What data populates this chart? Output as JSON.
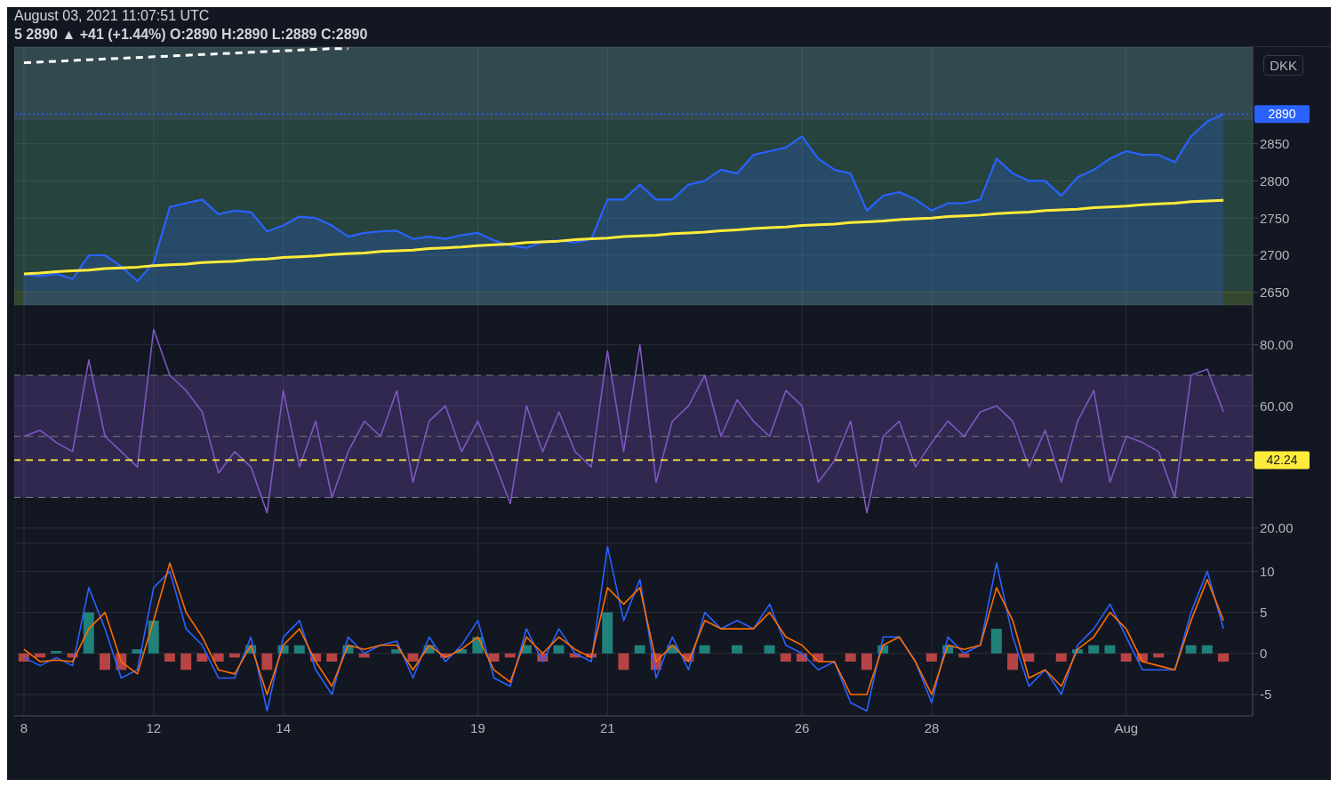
{
  "chart_data": [
    {
      "type": "area",
      "title": "August 03, 2021 11:07:51 UTC",
      "subtitle": "5  2890 ▲ +41 (+1.44%) O:2890 H:2890 L:2889 C:2890",
      "ylabel": "DKK",
      "categories": [
        null,
        null,
        null,
        null,
        null,
        null,
        null,
        null,
        null,
        null,
        null,
        null,
        null,
        null,
        null,
        null,
        null,
        null,
        null,
        null,
        null,
        null,
        null,
        null,
        null,
        null,
        null,
        null,
        null,
        null,
        null,
        null,
        null,
        null,
        null,
        null,
        null,
        null,
        null,
        null,
        null,
        null,
        null,
        null,
        null,
        null,
        null,
        null,
        null,
        null,
        null,
        null,
        null,
        null,
        null,
        null,
        null,
        null,
        null,
        null,
        null,
        null,
        null,
        null,
        null,
        null,
        null,
        null,
        null,
        null,
        null,
        null,
        null,
        null,
        null
      ],
      "series": [
        {
          "color": "#2962ff",
          "values": [
            2674,
            2672,
            2675,
            2668,
            2700,
            2700,
            2685,
            2665,
            2690,
            2765,
            2770,
            2775,
            2755,
            2760,
            2758,
            2732,
            2740,
            2752,
            2750,
            2740,
            2725,
            2730,
            2732,
            2733,
            2722,
            2725,
            2722,
            2727,
            2730,
            2720,
            2713,
            2710,
            2718,
            2720,
            2717,
            2722,
            2775,
            2775,
            2795,
            2775,
            2775,
            2795,
            2800,
            2815,
            2810,
            2835,
            2840,
            2845,
            2860,
            2830,
            2815,
            2810,
            2760,
            2780,
            2785,
            2775,
            2760,
            2770,
            2770,
            2775,
            2830,
            2810,
            2800,
            2800,
            2780,
            2805,
            2815,
            2830,
            2840,
            2835,
            2835,
            2825,
            2860,
            2880,
            2890
          ]
        },
        {
          "type": "line",
          "color": "#ffeb3b",
          "values": [
            2675,
            2676,
            2678,
            2679,
            2680,
            2682,
            2683,
            2684,
            2686,
            2687,
            2688,
            2690,
            2691,
            2692,
            2694,
            2695,
            2697,
            2698,
            2699,
            2701,
            2702,
            2703,
            2705,
            2706,
            2707,
            2709,
            2710,
            2711,
            2713,
            2714,
            2715,
            2717,
            2718,
            2719,
            2721,
            2722,
            2723,
            2725,
            2726,
            2727,
            2729,
            2730,
            2731,
            2733,
            2734,
            2736,
            2737,
            2738,
            2740,
            2741,
            2742,
            2744,
            2745,
            2746,
            2748,
            2749,
            2750,
            2752,
            2753,
            2754,
            2756,
            2757,
            2758,
            2760,
            2761,
            2762,
            2764,
            2765,
            2766,
            2768,
            2769,
            2770,
            2772,
            2773,
            2774
          ]
        },
        {
          "type": "line",
          "color": "#ffffff",
          "line_style": "dashed",
          "values": [
            2959,
            2960,
            2961,
            2962,
            2963,
            2964,
            2965,
            2966,
            2967,
            2968,
            2969,
            2970,
            2971,
            2972,
            2973,
            2974,
            2975,
            2976,
            2977,
            2978,
            2978,
            null,
            null,
            null,
            null,
            null,
            null,
            null,
            null,
            null,
            null,
            null,
            null,
            null,
            null,
            null,
            null,
            null,
            null,
            null,
            null,
            null,
            null,
            null,
            null,
            null,
            null,
            null,
            null,
            null,
            null,
            null,
            null,
            null,
            null,
            null,
            null,
            null,
            null,
            null,
            null,
            null,
            null,
            null,
            null,
            null,
            null,
            null,
            null,
            null,
            null,
            null,
            null,
            null,
            null
          ]
        }
      ],
      "ylim": [
        2633,
        2980
      ],
      "yticks": [
        2650,
        2700,
        2750,
        2800,
        2850
      ],
      "tick_labels": "y",
      "grid": true,
      "bands": [
        {
          "axis": "y",
          "from": 2633,
          "to": 2652,
          "color": "#8bc34a"
        },
        {
          "axis": "y",
          "from": 2652,
          "to": 2882,
          "color": "#5fb88a"
        },
        {
          "axis": "y",
          "from": 2882,
          "to": 2980,
          "color": "#80cbc4"
        }
      ],
      "ref_lines": [
        {
          "axis": "y",
          "value": 2890,
          "label": "2890",
          "color": "#2962ff",
          "line_style": "dotted"
        }
      ]
    },
    {
      "type": "line",
      "categories": [
        null,
        null,
        null,
        null,
        null,
        null,
        null,
        null,
        null,
        null,
        null,
        null,
        null,
        null,
        null,
        null,
        null,
        null,
        null,
        null,
        null,
        null,
        null,
        null,
        null,
        null,
        null,
        null,
        null,
        null,
        null,
        null,
        null,
        null,
        null,
        null,
        null,
        null,
        null,
        null,
        null,
        null,
        null,
        null,
        null,
        null,
        null,
        null,
        null,
        null,
        null,
        null,
        null,
        null,
        null,
        null,
        null,
        null,
        null,
        null,
        null,
        null,
        null,
        null,
        null,
        null,
        null,
        null,
        null,
        null,
        null,
        null,
        null,
        null,
        null
      ],
      "series": [
        {
          "color": "#7e57c2",
          "values": [
            50,
            52,
            48,
            45,
            75,
            50,
            45,
            40,
            85,
            70,
            65,
            58,
            38,
            45,
            40,
            25,
            65,
            40,
            55,
            30,
            45,
            55,
            50,
            65,
            35,
            55,
            60,
            45,
            55,
            42,
            28,
            60,
            45,
            58,
            45,
            40,
            78,
            45,
            80,
            35,
            55,
            60,
            70,
            50,
            62,
            55,
            50,
            65,
            60,
            35,
            42,
            55,
            25,
            50,
            55,
            40,
            48,
            55,
            50,
            58,
            60,
            55,
            40,
            52,
            35,
            55,
            65,
            35,
            50,
            48,
            45,
            30,
            70,
            72,
            58
          ]
        }
      ],
      "ylim": [
        15,
        93
      ],
      "yticks": [
        {
          "value": 20,
          "label": "20.00"
        },
        {
          "value": 60,
          "label": "60.00"
        },
        {
          "value": 80,
          "label": "80.00"
        }
      ],
      "tick_labels": "y",
      "grid": true,
      "bands": [
        {
          "axis": "y",
          "from": 30,
          "to": 70,
          "color": "#7e57c2"
        }
      ],
      "ref_lines": [
        {
          "axis": "y",
          "value": 70,
          "color": "#787b86",
          "line_style": "dashed"
        },
        {
          "axis": "y",
          "value": 50,
          "color": "#787b86",
          "line_style": "dashed"
        },
        {
          "axis": "y",
          "value": 30,
          "color": "#787b86",
          "line_style": "dashed"
        },
        {
          "axis": "y",
          "value": 42.24,
          "label": "42.24",
          "color": "#ffeb3b",
          "line_style": "dashed"
        }
      ]
    },
    {
      "type": "line",
      "categories": [
        "8",
        null,
        null,
        null,
        null,
        null,
        null,
        null,
        "12",
        null,
        null,
        null,
        null,
        null,
        null,
        null,
        "14",
        null,
        null,
        null,
        null,
        null,
        null,
        null,
        null,
        null,
        null,
        null,
        "19",
        null,
        null,
        null,
        null,
        null,
        null,
        null,
        "21",
        null,
        null,
        null,
        null,
        null,
        null,
        null,
        null,
        null,
        null,
        null,
        "26",
        null,
        null,
        null,
        null,
        null,
        null,
        null,
        "28",
        null,
        null,
        null,
        null,
        null,
        null,
        null,
        null,
        null,
        null,
        null,
        "Aug",
        null,
        null,
        null,
        null,
        null,
        null
      ],
      "series": [
        {
          "type": "bar",
          "values": [
            -1,
            -0.5,
            0.3,
            -0.5,
            5,
            -2,
            -2,
            0.5,
            4,
            -1,
            -2,
            -1,
            -1,
            -0.5,
            1,
            -2,
            1,
            1,
            -1,
            -1,
            1,
            -0.5,
            0,
            0.5,
            -1,
            1,
            -0.5,
            0.5,
            2,
            -1,
            -0.5,
            1,
            -1,
            1,
            -0.5,
            -0.5,
            5,
            -2,
            1,
            -2,
            1,
            -1,
            1,
            0,
            1,
            0,
            1,
            -1,
            -1,
            -1,
            0,
            -1,
            -2,
            1,
            0,
            0,
            -1,
            1,
            -0.5,
            0,
            3,
            -2,
            -1,
            0,
            -1,
            0.5,
            1,
            1,
            -1,
            -1,
            -0.5,
            0,
            1,
            1,
            -1
          ],
          "colors": [
            "#ef5350",
            "#ef5350",
            "#26a69a",
            "#ef5350",
            "#26a69a",
            "#ef5350",
            "#ef5350",
            "#26a69a",
            "#26a69a",
            "#ef5350",
            "#ef5350",
            "#ef5350",
            "#ef5350",
            "#ef5350",
            "#26a69a",
            "#ef5350",
            "#26a69a",
            "#26a69a",
            "#ef5350",
            "#ef5350",
            "#26a69a",
            "#ef5350",
            "#ef5350",
            "#26a69a",
            "#ef5350",
            "#26a69a",
            "#ef5350",
            "#26a69a",
            "#26a69a",
            "#ef5350",
            "#ef5350",
            "#26a69a",
            "#ef5350",
            "#26a69a",
            "#ef5350",
            "#ef5350",
            "#26a69a",
            "#ef5350",
            "#26a69a",
            "#ef5350",
            "#26a69a",
            "#ef5350",
            "#26a69a",
            "#ef5350",
            "#26a69a",
            "#ef5350",
            "#26a69a",
            "#ef5350",
            "#ef5350",
            "#ef5350",
            "#ef5350",
            "#ef5350",
            "#ef5350",
            "#26a69a",
            "#ef5350",
            "#ef5350",
            "#ef5350",
            "#26a69a",
            "#ef5350",
            "#ef5350",
            "#26a69a",
            "#ef5350",
            "#ef5350",
            "#ef5350",
            "#ef5350",
            "#26a69a",
            "#26a69a",
            "#26a69a",
            "#ef5350",
            "#ef5350",
            "#ef5350",
            "#ef5350",
            "#26a69a",
            "#26a69a",
            "#ef5350"
          ]
        },
        {
          "color": "#2962ff",
          "values": [
            -0.5,
            -1.5,
            -0.5,
            -1.5,
            8,
            3,
            -3,
            -2,
            8,
            10,
            3,
            1,
            -3,
            -3,
            2,
            -7,
            2,
            4,
            -2,
            -5,
            2,
            0,
            1,
            1.5,
            -3,
            2,
            -1,
            1,
            4,
            -3,
            -4,
            3,
            -1,
            3,
            0,
            -1,
            13,
            4,
            9,
            -3,
            2,
            -2,
            5,
            3,
            4,
            3,
            6,
            1,
            0,
            -2,
            -1,
            -6,
            -7,
            2,
            2,
            -1,
            -6,
            2,
            0,
            1,
            11,
            2,
            -4,
            -2,
            -5,
            1,
            3,
            6,
            2,
            -2,
            -2,
            -2,
            5,
            10,
            3
          ]
        },
        {
          "color": "#ff6d00",
          "values": [
            0.5,
            -1,
            -0.8,
            -1,
            3,
            5,
            -1,
            -2.5,
            4,
            11,
            5,
            2,
            -2,
            -2.5,
            1,
            -5,
            1,
            3,
            -1,
            -4,
            1,
            0.5,
            1,
            1,
            -2,
            1,
            -0.5,
            0.5,
            2,
            -2,
            -3.5,
            2,
            0,
            2,
            0.5,
            -0.5,
            8,
            6,
            8,
            -1,
            1,
            -1,
            4,
            3,
            3,
            3,
            5,
            2,
            1,
            -1,
            -1,
            -5,
            -5,
            1,
            2,
            -1,
            -5,
            1,
            0.5,
            1,
            8,
            4,
            -3,
            -2,
            -4,
            0.5,
            2,
            5,
            3,
            -1,
            -1.5,
            -2,
            4,
            9,
            4
          ]
        }
      ],
      "ylim": [
        -7.6,
        13.4
      ],
      "yticks": [
        -5,
        0,
        5,
        10
      ],
      "grid": true
    }
  ]
}
